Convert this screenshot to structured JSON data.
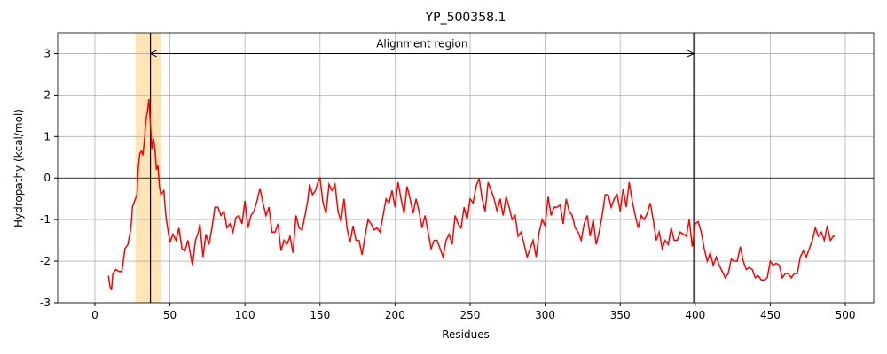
{
  "chart_data": {
    "type": "line",
    "title": "YP_500358.1",
    "x_label": "Residues",
    "y_label": "Hydropathy (kcal/mol)",
    "color": "#ff0000",
    "grid": true,
    "xlim": [
      -24.8,
      518.9
    ],
    "ylim": [
      -3,
      3.5
    ],
    "xticks": [
      0,
      50,
      100,
      150,
      200,
      250,
      300,
      350,
      400,
      450,
      500
    ],
    "yticks": [
      -3,
      -2,
      -1,
      0,
      1,
      2,
      3
    ],
    "highlight_span": [
      27,
      44
    ],
    "span_color": "#ffe4b5",
    "vlines": [
      37,
      399
    ],
    "hline": 0,
    "annotation": {
      "text": "Alignment region",
      "x": 218,
      "y": 3.15,
      "arrow": [
        37,
        399,
        3
      ]
    },
    "x": [
      9,
      10,
      11,
      12,
      14,
      16,
      18,
      20,
      22,
      24,
      25,
      27,
      28,
      29,
      30,
      31,
      32,
      33,
      34,
      35,
      36,
      37,
      38,
      39,
      40,
      41,
      42,
      43,
      44,
      46,
      47,
      48,
      50,
      52,
      54,
      56,
      58,
      60,
      62,
      64,
      65,
      67,
      69,
      70,
      72,
      74,
      76,
      78,
      80,
      82,
      84,
      86,
      88,
      90,
      92,
      94,
      96,
      98,
      100,
      102,
      104,
      106,
      108,
      110,
      112,
      114,
      116,
      118,
      120,
      122,
      124,
      126,
      128,
      130,
      132,
      134,
      136,
      138,
      140,
      142,
      143,
      145,
      147,
      149,
      150,
      152,
      154,
      156,
      158,
      160,
      162,
      164,
      166,
      168,
      170,
      172,
      174,
      176,
      178,
      180,
      182,
      184,
      186,
      188,
      190,
      192,
      194,
      196,
      198,
      200,
      202,
      204,
      206,
      208,
      210,
      212,
      214,
      216,
      218,
      220,
      222,
      224,
      226,
      228,
      230,
      232,
      234,
      236,
      238,
      240,
      242,
      244,
      246,
      248,
      250,
      252,
      254,
      256,
      258,
      260,
      262,
      264,
      266,
      268,
      270,
      272,
      274,
      276,
      278,
      280,
      282,
      284,
      286,
      288,
      290,
      292,
      294,
      296,
      298,
      300,
      302,
      304,
      306,
      308,
      310,
      312,
      314,
      316,
      318,
      320,
      322,
      324,
      326,
      328,
      330,
      332,
      334,
      336,
      338,
      340,
      342,
      344,
      346,
      348,
      350,
      352,
      354,
      356,
      358,
      360,
      362,
      364,
      366,
      368,
      370,
      372,
      374,
      376,
      378,
      380,
      382,
      384,
      386,
      388,
      390,
      392,
      394,
      396,
      398,
      400,
      402,
      404,
      406,
      408,
      410,
      412,
      414,
      416,
      418,
      420,
      422,
      424,
      426,
      428,
      430,
      432,
      434,
      436,
      438,
      440,
      442,
      444,
      446,
      448,
      450,
      452,
      454,
      456,
      458,
      460,
      462,
      464,
      466,
      468,
      470,
      472,
      474,
      476,
      478,
      480,
      482,
      484,
      486,
      488,
      490,
      492,
      493
    ],
    "values": [
      -2.35,
      -2.6,
      -2.7,
      -2.3,
      -2.2,
      -2.25,
      -2.25,
      -1.7,
      -1.6,
      -1.2,
      -0.7,
      -0.5,
      -0.4,
      0.3,
      0.6,
      0.65,
      0.55,
      0.9,
      1.4,
      1.6,
      1.9,
      1.3,
      0.7,
      0.95,
      0.7,
      0.2,
      0.3,
      -0.2,
      -0.4,
      -0.3,
      -0.8,
      -1.1,
      -1.55,
      -1.35,
      -1.5,
      -1.2,
      -1.7,
      -1.75,
      -1.5,
      -1.9,
      -2.1,
      -1.5,
      -1.3,
      -1.1,
      -1.9,
      -1.35,
      -1.6,
      -1.2,
      -0.7,
      -0.7,
      -0.9,
      -0.8,
      -1.2,
      -1.1,
      -1.3,
      -0.95,
      -0.9,
      -1.1,
      -0.55,
      -1.2,
      -0.9,
      -0.8,
      -0.55,
      -0.25,
      -0.6,
      -0.9,
      -0.7,
      -1.3,
      -1.3,
      -1.1,
      -1.75,
      -1.5,
      -1.6,
      -1.4,
      -1.8,
      -0.9,
      -1.2,
      -1.25,
      -0.9,
      -0.5,
      -0.15,
      -0.4,
      -0.3,
      -0.05,
      0,
      -0.6,
      -0.85,
      -0.15,
      -0.3,
      -0.15,
      -0.8,
      -1.05,
      -0.5,
      -1.2,
      -1.55,
      -1.15,
      -1.5,
      -1.5,
      -1.85,
      -1.4,
      -1.0,
      -1.1,
      -1.25,
      -1.2,
      -1.3,
      -0.9,
      -0.5,
      -0.6,
      -0.3,
      -0.7,
      -0.1,
      -0.5,
      -0.85,
      -0.2,
      -0.5,
      -0.85,
      -0.5,
      -0.8,
      -1.2,
      -0.9,
      -1.3,
      -1.7,
      -1.5,
      -1.5,
      -1.7,
      -1.9,
      -1.5,
      -1.35,
      -1.6,
      -0.9,
      -1.1,
      -1.2,
      -0.7,
      -1.0,
      -0.5,
      -0.6,
      -0.2,
      0,
      -0.5,
      -0.8,
      -0.1,
      -0.3,
      -0.5,
      -0.8,
      -0.5,
      -0.9,
      -0.45,
      -0.7,
      -1.0,
      -0.9,
      -1.4,
      -1.3,
      -1.6,
      -1.9,
      -1.7,
      -1.5,
      -1.9,
      -1.3,
      -1.0,
      -1.15,
      -0.45,
      -0.9,
      -0.7,
      -0.7,
      -0.65,
      -1.1,
      -0.5,
      -0.8,
      -0.9,
      -1.2,
      -1.3,
      -1.5,
      -1.1,
      -0.9,
      -1.4,
      -1.0,
      -1.6,
      -1.3,
      -0.9,
      -0.4,
      -0.4,
      -0.7,
      -0.5,
      -0.4,
      -0.8,
      -0.25,
      -0.7,
      -0.1,
      -0.55,
      -0.9,
      -1.2,
      -0.9,
      -1.0,
      -0.85,
      -0.6,
      -1.0,
      -1.5,
      -1.3,
      -1.7,
      -1.5,
      -1.6,
      -1.2,
      -1.5,
      -1.5,
      -1.3,
      -1.35,
      -1.4,
      -1.0,
      -1.65,
      -1.1,
      -1.05,
      -1.3,
      -1.7,
      -2.0,
      -1.8,
      -2.1,
      -1.9,
      -2.1,
      -2.25,
      -2.4,
      -2.3,
      -1.95,
      -2.0,
      -2.0,
      -1.65,
      -2.0,
      -2.2,
      -2.15,
      -2.2,
      -2.4,
      -2.35,
      -2.45,
      -2.45,
      -2.4,
      -2.0,
      -2.1,
      -2.05,
      -2.1,
      -2.4,
      -2.3,
      -2.3,
      -2.4,
      -2.3,
      -2.3,
      -1.9,
      -1.75,
      -1.9,
      -1.7,
      -1.5,
      -1.2,
      -1.4,
      -1.3,
      -1.5,
      -1.15,
      -1.5,
      -1.4,
      -1.4
    ]
  }
}
